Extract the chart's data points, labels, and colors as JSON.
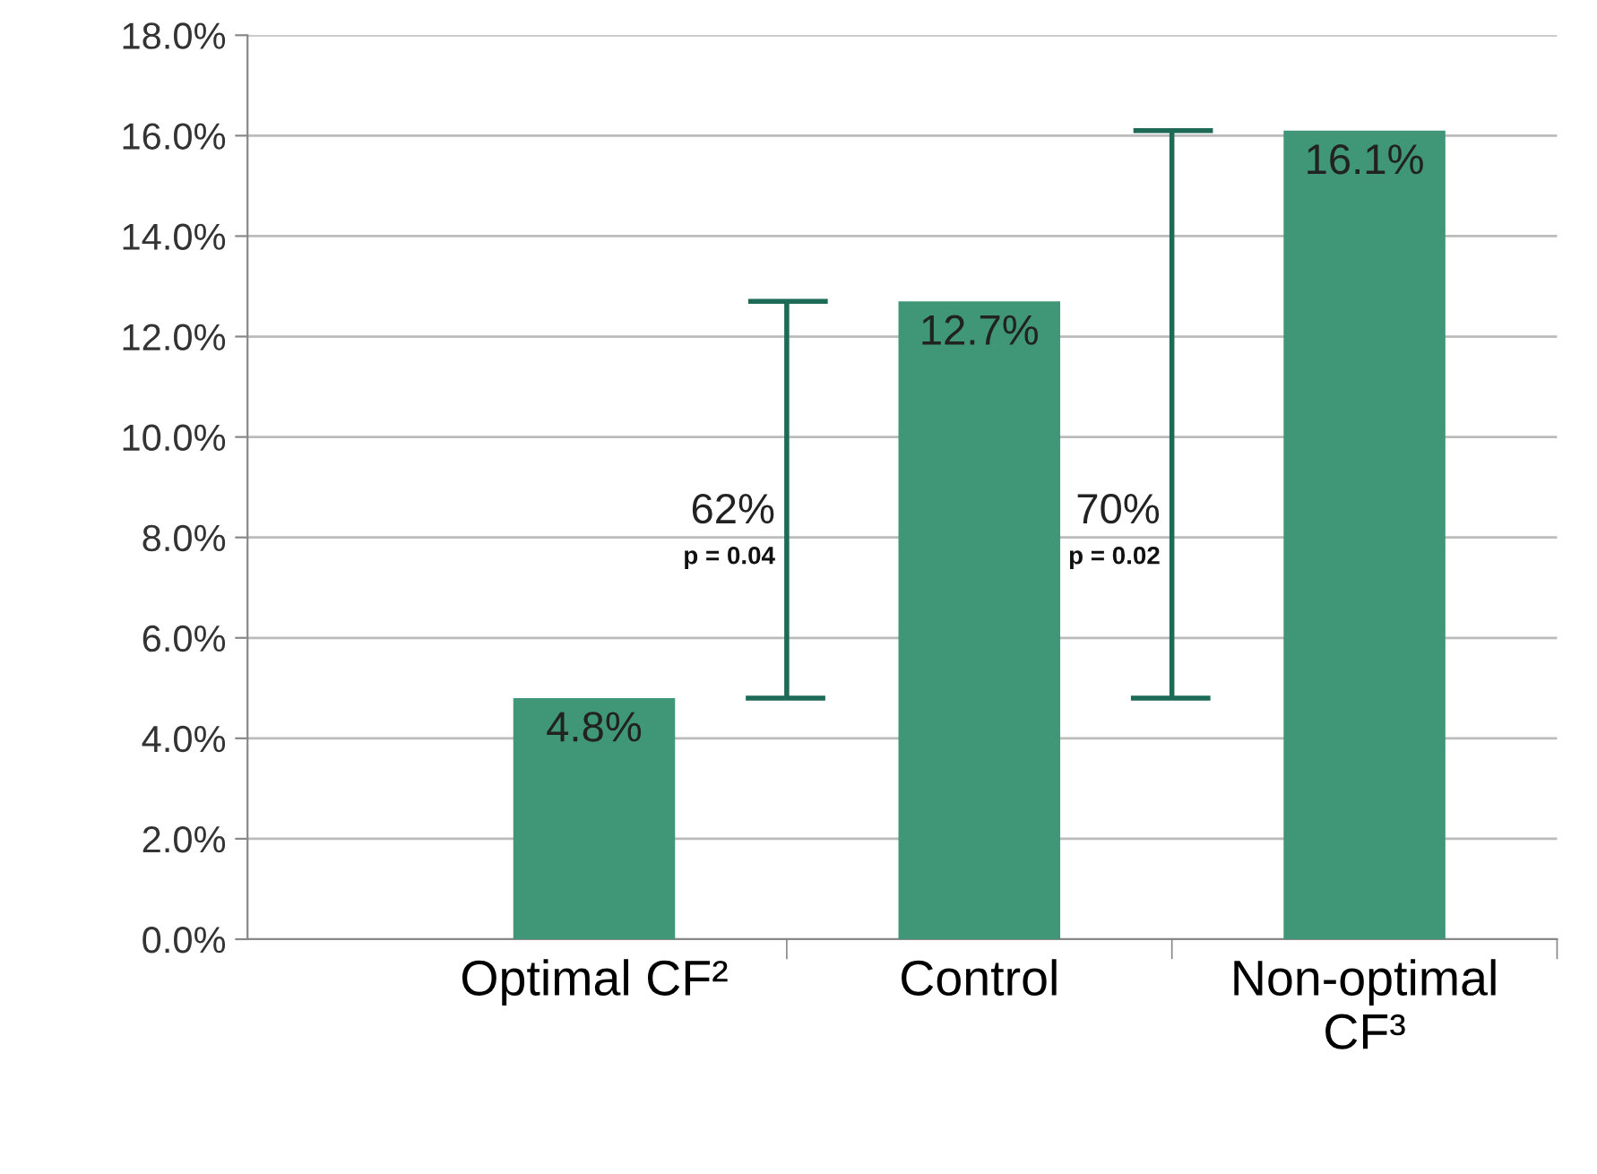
{
  "chart_data": {
    "type": "bar",
    "categories": [
      "Optimal CF²",
      "Control",
      "Non-optimal\nCF³"
    ],
    "values": [
      4.8,
      12.7,
      16.1
    ],
    "color": "#3f9778",
    "data_labels": true,
    "value_labels": [
      "4.8%",
      "12.7%",
      "16.1%"
    ],
    "ylim": [
      0,
      18
    ],
    "yticks": [
      {
        "value": 0,
        "label": "0.0%"
      },
      {
        "value": 2,
        "label": "2.0%"
      },
      {
        "value": 4,
        "label": "4.0%"
      },
      {
        "value": 6,
        "label": "6.0%"
      },
      {
        "value": 8,
        "label": "8.0%"
      },
      {
        "value": 10,
        "label": "10.0%"
      },
      {
        "value": 12,
        "label": "12.0%"
      },
      {
        "value": 14,
        "label": "14.0%"
      },
      {
        "value": 16,
        "label": "16.0%"
      },
      {
        "value": 18,
        "label": "18.0%"
      }
    ],
    "grid": "y",
    "annotations": [
      "62%",
      "p = 0.04",
      "70%",
      "p = 0.02"
    ]
  }
}
